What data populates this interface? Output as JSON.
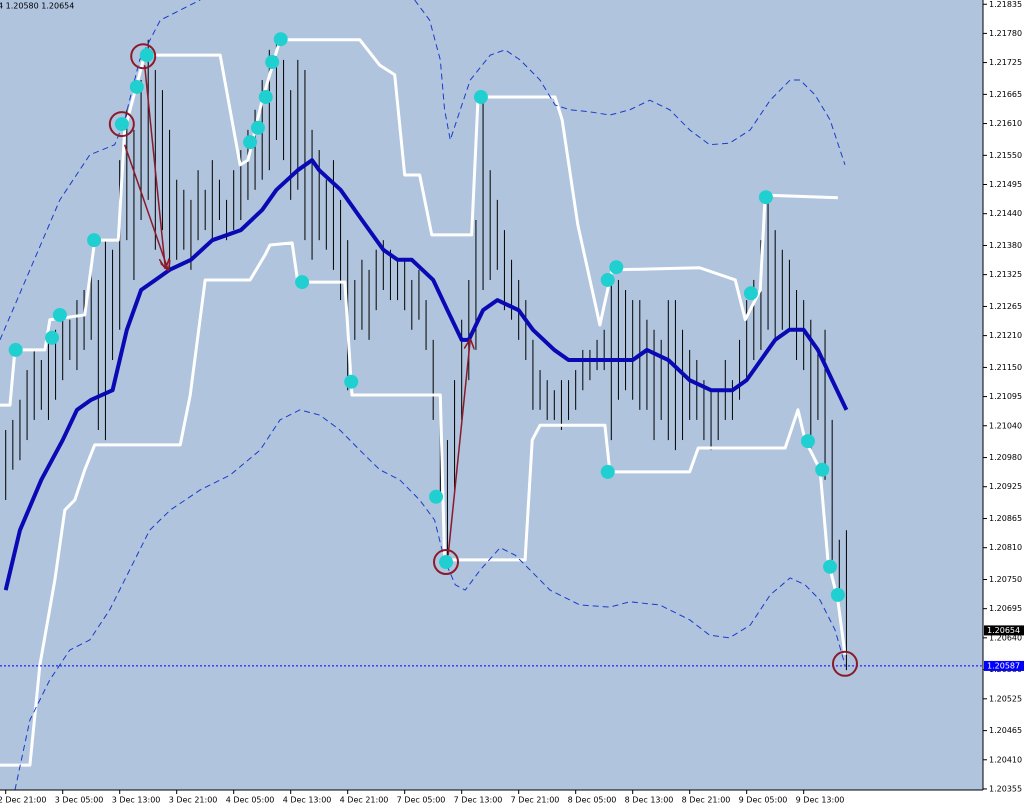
{
  "chart_data": {
    "type": "hl-bar",
    "title": "4 1.20580 1.20654",
    "background": "#b0c4de",
    "bar_color": "#000000",
    "categories": [
      "2 Dec 21:00",
      null,
      null,
      null,
      null,
      null,
      null,
      null,
      "3 Dec 05:00",
      null,
      null,
      null,
      null,
      null,
      null,
      null,
      "3 Dec 13:00",
      null,
      null,
      null,
      null,
      null,
      null,
      null,
      "3 Dec 21:00",
      null,
      null,
      null,
      null,
      null,
      null,
      null,
      "4 Dec 05:00",
      null,
      null,
      null,
      null,
      null,
      null,
      null,
      "4 Dec 13:00",
      null,
      null,
      null,
      null,
      null,
      null,
      null,
      "4 Dec 21:00",
      null,
      null,
      null,
      null,
      null,
      null,
      null,
      "7 Dec 05:00",
      null,
      null,
      null,
      null,
      null,
      null,
      null,
      "7 Dec 13:00",
      null,
      null,
      null,
      null,
      null,
      null,
      null,
      "7 Dec 21:00",
      null,
      null,
      null,
      null,
      null,
      null,
      null,
      "8 Dec 05:00",
      null,
      null,
      null,
      null,
      null,
      null,
      null,
      "8 Dec 13:00",
      null,
      null,
      null,
      null,
      null,
      null,
      null,
      "8 Dec 21:00",
      null,
      null,
      null,
      null,
      null,
      null,
      null,
      "9 Dec 05:00",
      null,
      null,
      null,
      null,
      null,
      null,
      null,
      "9 Dec 13:00",
      null,
      null,
      null,
      null,
      null,
      null
    ],
    "high": [
      1.21032,
      1.21051,
      1.21089,
      1.21145,
      1.21183,
      1.21164,
      1.21202,
      1.21221,
      1.21258,
      1.2124,
      1.21277,
      1.21296,
      1.21353,
      1.21315,
      1.2139,
      1.21372,
      1.21541,
      1.21636,
      1.21598,
      1.21692,
      1.21768,
      1.21711,
      1.21673,
      1.21598,
      1.21504,
      1.21485,
      1.21466,
      1.21522,
      1.21485,
      1.21541,
      1.21504,
      1.21466,
      1.21522,
      1.2156,
      1.21598,
      1.21636,
      1.21692,
      1.21749,
      1.21768,
      1.2173,
      1.21673,
      1.2173,
      1.21711,
      1.21598,
      1.2156,
      1.21504,
      1.21541,
      1.21466,
      1.2139,
      1.21315,
      1.21353,
      1.21334,
      1.21372,
      1.2139,
      1.21372,
      1.21353,
      1.21353,
      1.21315,
      1.21334,
      1.21277,
      1.21202,
      1.21089,
      1.21013,
      1.21126,
      1.2124,
      1.21315,
      1.21428,
      1.21654,
      1.21522,
      1.21466,
      1.21409,
      1.21353,
      1.21315,
      1.21277,
      1.21202,
      1.21145,
      1.21126,
      1.21107,
      1.21126,
      1.21126,
      1.21145,
      1.21183,
      1.21183,
      1.21202,
      1.21221,
      1.21334,
      1.21315,
      1.21296,
      1.21277,
      1.21277,
      1.2124,
      1.21221,
      1.21202,
      1.21277,
      1.21277,
      1.21221,
      1.21183,
      1.21164,
      1.21126,
      1.21107,
      1.21107,
      1.21164,
      1.21126,
      1.21202,
      1.21277,
      1.21315,
      1.2139,
      1.21466,
      1.21409,
      1.21372,
      1.21353,
      1.21296,
      1.21277,
      1.2124,
      1.21183,
      1.21221,
      1.21051,
      1.20825,
      1.20843
    ],
    "low": [
      1.209,
      1.20957,
      1.20975,
      1.21013,
      1.21051,
      1.2107,
      1.21051,
      1.21089,
      1.21126,
      1.21164,
      1.21145,
      1.21183,
      1.21202,
      1.21032,
      1.21013,
      1.21164,
      1.21221,
      1.2139,
      1.21315,
      1.21428,
      1.21466,
      1.21372,
      1.21409,
      1.21334,
      1.21353,
      1.21372,
      1.21334,
      1.2139,
      1.21409,
      1.2139,
      1.21428,
      1.2139,
      1.21409,
      1.21428,
      1.21466,
      1.21485,
      1.21504,
      1.21522,
      1.21579,
      1.21541,
      1.21466,
      1.21485,
      1.2139,
      1.21353,
      1.2139,
      1.21372,
      1.21334,
      1.21277,
      1.21107,
      1.21202,
      1.21221,
      1.21202,
      1.21258,
      1.21296,
      1.21277,
      1.21277,
      1.21258,
      1.21221,
      1.2124,
      1.21183,
      1.21051,
      1.209,
      1.20787,
      1.20919,
      1.21051,
      1.21126,
      1.21183,
      1.21296,
      1.21315,
      1.21334,
      1.21258,
      1.2124,
      1.21202,
      1.21164,
      1.2107,
      1.2107,
      1.21051,
      1.21051,
      1.21032,
      1.21051,
      1.2107,
      1.21107,
      1.21126,
      1.21145,
      1.21145,
      1.21013,
      1.21089,
      1.21107,
      1.21089,
      1.2107,
      1.2107,
      1.21013,
      1.21051,
      1.21013,
      1.20994,
      1.21013,
      1.21051,
      1.21051,
      1.21013,
      1.20994,
      1.21013,
      1.21051,
      1.21051,
      1.21089,
      1.21126,
      1.21164,
      1.21183,
      1.21221,
      1.21202,
      1.21221,
      1.21221,
      1.21164,
      1.21145,
      1.20994,
      1.21051,
      1.20938,
      1.20787,
      1.20711,
      1.20579
    ],
    "overlays": [
      {
        "style": "solid",
        "color": "#ffffff",
        "x": [
          -0.8,
          0.6,
          1.3,
          5.5,
          6.2,
          11.1,
          12.5,
          15.8,
          16.7,
          19.5,
          30.1,
          32.9,
          34,
          36,
          38.5,
          49.7,
          52.5,
          54.6,
          56,
          58.1,
          59.8,
          65.4,
          66.3,
          77.1,
          78.1,
          80.3,
          83.4,
          85.1,
          97.4,
          102.4,
          103.8,
          105.9,
          106.6,
          116.8
        ],
        "values": [
          1.21079,
          1.21079,
          1.21183,
          1.21183,
          1.2124,
          1.21249,
          1.2139,
          1.2139,
          1.21598,
          1.21739,
          1.21739,
          1.21532,
          1.21541,
          1.21654,
          1.21768,
          1.21768,
          1.2172,
          1.21702,
          1.21513,
          1.21513,
          1.214,
          1.214,
          1.2166,
          1.2166,
          1.21617,
          1.21419,
          1.2123,
          1.21334,
          1.21338,
          1.21315,
          1.2124,
          1.21296,
          1.21475,
          1.2147
        ]
      },
      {
        "style": "solid",
        "color": "#ffffff",
        "x": [
          -0.8,
          3.4,
          4.8,
          6.9,
          8.3,
          9.7,
          11.1,
          12.5,
          24.5,
          25.9,
          28,
          34.3,
          36.4,
          37.1,
          40.2,
          41,
          47.6,
          48.6,
          61,
          61.6,
          72.9,
          73.9,
          75,
          84.1,
          84.8,
          96,
          97.2,
          109.4,
          111.2,
          112.2,
          114.3,
          115.4,
          116.8,
          117.8
        ],
        "values": [
          1.204,
          1.204,
          1.20589,
          1.20749,
          1.20881,
          1.209,
          1.20957,
          1.21004,
          1.21004,
          1.21098,
          1.21315,
          1.21315,
          1.21362,
          1.21381,
          1.21385,
          1.21311,
          1.21311,
          1.21098,
          1.21098,
          1.20787,
          1.20787,
          1.21013,
          1.21041,
          1.21041,
          1.20953,
          1.20953,
          1.20998,
          1.20998,
          1.2107,
          1.21013,
          1.20957,
          1.20787,
          1.20711,
          1.20608
        ]
      },
      {
        "style": "thick",
        "color": "#0a0ab4",
        "x": [
          0,
          2,
          5,
          8,
          10,
          12,
          15,
          17,
          19,
          21,
          23,
          26,
          29,
          33,
          36,
          38,
          41,
          43,
          44,
          47,
          50,
          53,
          55,
          57,
          60,
          62,
          64,
          65,
          67,
          69,
          72,
          74,
          77,
          79,
          82,
          85,
          88,
          90,
          93,
          96,
          99,
          102,
          104,
          106,
          108,
          110,
          112,
          114,
          116,
          118
        ],
        "values": [
          1.2073,
          1.20843,
          1.20938,
          1.21013,
          1.2107,
          1.21089,
          1.21107,
          1.21221,
          1.21296,
          1.21315,
          1.21334,
          1.21353,
          1.2139,
          1.21409,
          1.21447,
          1.21485,
          1.21522,
          1.21541,
          1.21522,
          1.21485,
          1.21428,
          1.21372,
          1.21353,
          1.21353,
          1.21315,
          1.21258,
          1.21202,
          1.21202,
          1.21258,
          1.21277,
          1.21258,
          1.21221,
          1.21183,
          1.21164,
          1.21164,
          1.21164,
          1.21164,
          1.21183,
          1.21164,
          1.21126,
          1.21107,
          1.21107,
          1.21126,
          1.21164,
          1.21202,
          1.21221,
          1.21221,
          1.21183,
          1.21126,
          1.2107
        ]
      },
      {
        "style": "dashed",
        "color": "#1a3cc8",
        "x": [
          -0.8,
          3.4,
          7.6,
          11.8,
          15.3,
          16.7,
          18.8,
          21.7,
          24.5,
          27.3
        ],
        "values": [
          1.21202,
          1.21334,
          1.21466,
          1.21551,
          1.2157,
          1.21617,
          1.2173,
          1.21805,
          1.21824,
          1.21843
        ]
      },
      {
        "style": "dashed",
        "color": "#1a3cc8",
        "x": [
          57.4,
          59.5,
          61,
          61.6,
          62.4,
          63.8,
          65.2,
          68,
          70.1,
          72.2,
          75,
          77.1,
          79.2,
          82,
          84.8,
          87.6,
          90.4,
          93.2,
          96,
          98.8,
          101.6,
          104.5,
          107.3,
          110.1,
          111.5,
          113.6,
          115.7,
          117.8
        ],
        "values": [
          1.21843,
          1.21805,
          1.2173,
          1.21636,
          1.21579,
          1.21636,
          1.21692,
          1.21739,
          1.21749,
          1.2173,
          1.21692,
          1.21645,
          1.21636,
          1.21632,
          1.21626,
          1.21636,
          1.21654,
          1.21636,
          1.21598,
          1.2157,
          1.21573,
          1.21598,
          1.21654,
          1.21692,
          1.21692,
          1.21664,
          1.21617,
          1.21532
        ]
      },
      {
        "style": "dashed",
        "color": "#1a3cc8",
        "x": [
          1.3,
          3.4,
          6.2,
          9,
          11.8,
          14.6,
          17.4,
          20.2,
          23.1,
          27.3,
          31.5,
          35.7,
          38.5,
          41.3,
          44.1,
          46.9,
          49.7,
          52.5,
          55.3,
          58.1,
          60.2,
          61.6,
          63.1,
          64.5,
          66.6,
          69.4,
          71.5,
          73.6,
          76.4,
          80.6,
          84.8,
          87.6,
          91.8,
          96,
          98.8,
          101.6,
          104.5,
          107.3,
          110.1,
          112.2,
          114.3,
          116.4,
          117.8
        ],
        "values": [
          1.20353,
          1.20485,
          1.20561,
          1.20617,
          1.20636,
          1.20693,
          1.20768,
          1.20843,
          1.20881,
          1.20919,
          1.20947,
          1.20994,
          1.21051,
          1.2107,
          1.2106,
          1.21032,
          1.20994,
          1.20957,
          1.20938,
          1.209,
          1.20862,
          1.20787,
          1.2074,
          1.2073,
          1.20768,
          1.2081,
          1.20796,
          1.20768,
          1.2073,
          1.20702,
          1.20698,
          1.20708,
          1.20702,
          1.20674,
          1.20645,
          1.2064,
          1.20664,
          1.20721,
          1.20753,
          1.2074,
          1.20711,
          1.20655,
          1.20589
        ]
      }
    ],
    "signals": {
      "color": "#20d0d0",
      "x": [
        1.4,
        6.5,
        7.6,
        12.4,
        16.3,
        18.4,
        19.8,
        34.3,
        35.4,
        36.5,
        37.4,
        38.6,
        41.6,
        48.5,
        60.4,
        61.8,
        66.7,
        84.5,
        85.7,
        84.5,
        104.6,
        106.7,
        112.6,
        114.6,
        115.7,
        116.8
      ],
      "values": [
        1.21183,
        1.21206,
        1.21249,
        1.2139,
        1.21609,
        1.21679,
        1.21739,
        1.21575,
        1.21602,
        1.2166,
        1.21726,
        1.21769,
        1.21311,
        1.21123,
        1.20906,
        1.20783,
        1.2166,
        1.21315,
        1.21339,
        1.20953,
        1.2129,
        1.21471,
        1.21011,
        1.20957,
        1.20774,
        1.20721
      ]
    },
    "circles": {
      "color": "#8b1a2a",
      "x": [
        16.3,
        19.3,
        61.8,
        117.8
      ],
      "values": [
        1.21609,
        1.21737,
        1.20783,
        1.20591
      ]
    },
    "arrows": {
      "color": "#8b1a2a",
      "items": [
        {
          "x": [
            16.7,
            22.8
          ],
          "values": [
            1.2157,
            1.21334
          ]
        },
        {
          "x": [
            19.5,
            22.4
          ],
          "values": [
            1.2172,
            1.21338
          ]
        },
        {
          "x": [
            62.1,
            65.2
          ],
          "values": [
            1.20796,
            1.21202
          ]
        }
      ]
    },
    "price_markers": [
      {
        "value": 1.20654,
        "color": "#000000",
        "dotted": false
      },
      {
        "value": 1.20587,
        "color": "#0000ff",
        "dotted": true
      }
    ],
    "xlim": [
      -0.8,
      137.17
    ],
    "ylim": [
      1.20353,
      1.21843
    ],
    "yticks": [
      1.21835,
      {
        "value": 1.2178,
        "label": "1.21780"
      },
      1.21725,
      1.21665,
      {
        "value": 1.2161,
        "label": "1.21610"
      },
      {
        "value": 1.2155,
        "label": "1.21550"
      },
      1.21495,
      {
        "value": 1.2144,
        "label": "1.21440"
      },
      {
        "value": 1.2138,
        "label": "1.21380"
      },
      1.21325,
      1.21265,
      {
        "value": 1.2121,
        "label": "1.21210"
      },
      {
        "value": 1.2115,
        "label": "1.21150"
      },
      1.21095,
      {
        "value": 1.2104,
        "label": "1.21040"
      },
      {
        "value": 1.2098,
        "label": "1.20980"
      },
      1.20925,
      1.20865,
      {
        "value": 1.2081,
        "label": "1.20810"
      },
      {
        "value": 1.2075,
        "label": "1.20750"
      },
      1.20695,
      {
        "value": 1.2064,
        "label": "1.20640"
      },
      {
        "value": 1.2058,
        "label": "1.20580"
      },
      1.20525,
      1.20465,
      {
        "value": 1.2041,
        "label": "1.20410"
      },
      1.20355
    ]
  }
}
